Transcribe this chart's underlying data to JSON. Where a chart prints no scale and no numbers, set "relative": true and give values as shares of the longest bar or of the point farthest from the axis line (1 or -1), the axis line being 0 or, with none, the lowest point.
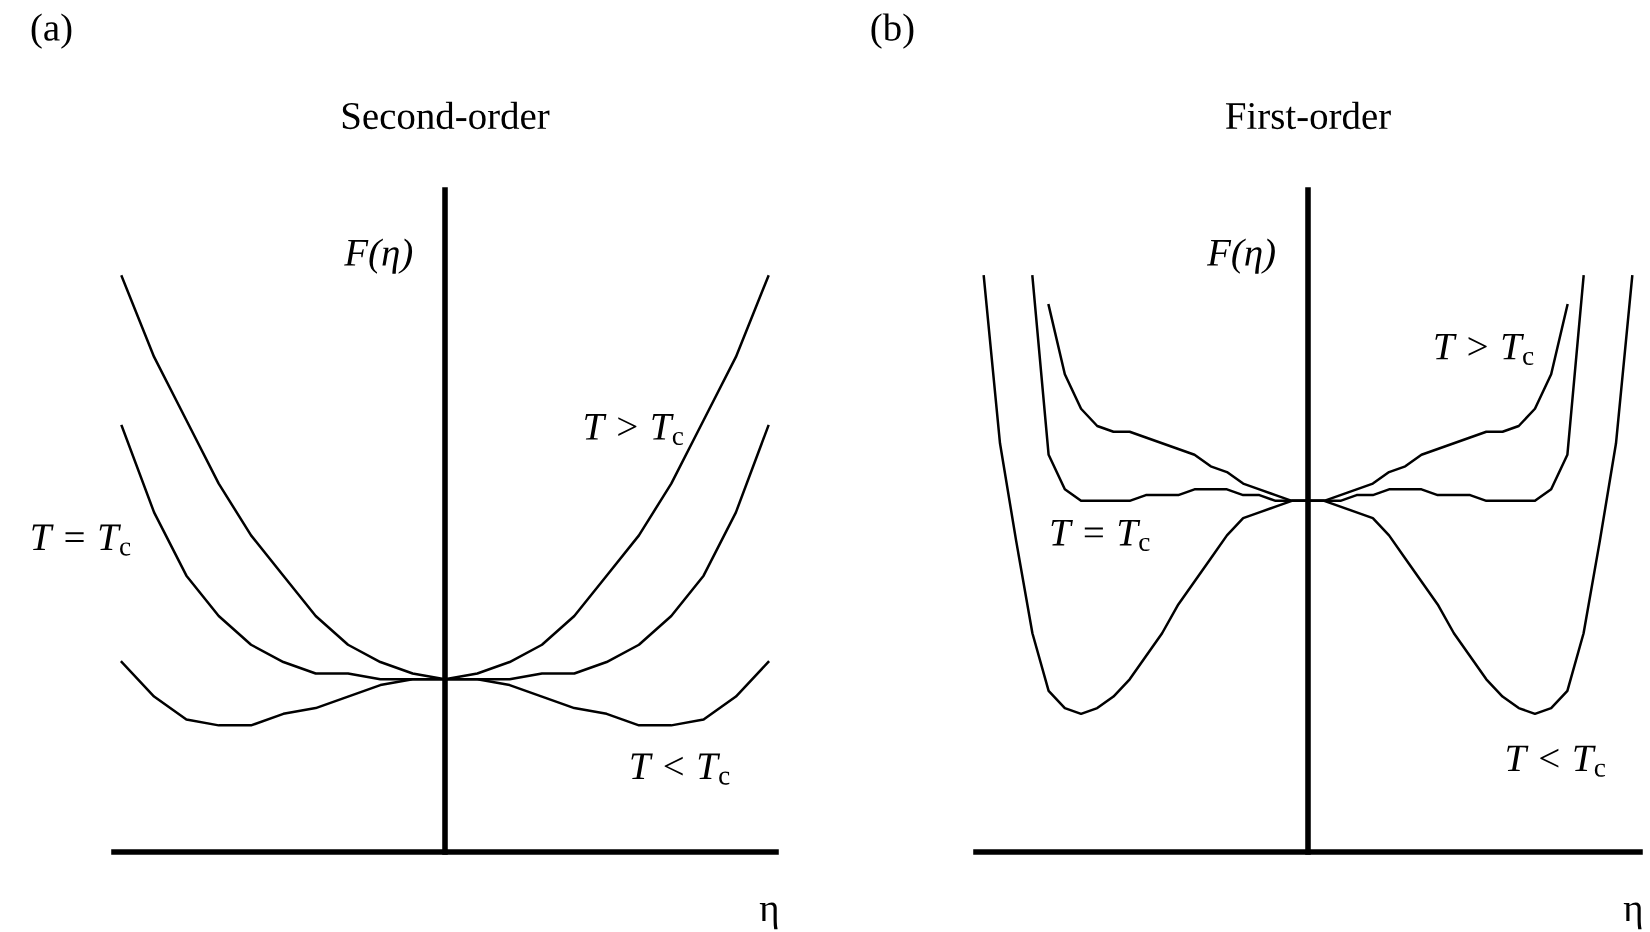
{
  "chart_data": [
    {
      "type": "line",
      "title": "Second-order",
      "xlabel": "η",
      "ylabel": "F(η)",
      "annotations": [
        "(a)"
      ],
      "relative": true,
      "categories": [
        null,
        null,
        null,
        null,
        null,
        null,
        null,
        null,
        null,
        null,
        null,
        null,
        null,
        null,
        null,
        null,
        null,
        null,
        null,
        null,
        null
      ],
      "series": [
        {
          "name": "T > T$_{c}$",
          "color": "#000000",
          "values": [
            1.0,
            0.86,
            0.75,
            0.64,
            0.55,
            0.48,
            0.41,
            0.36,
            0.33,
            0.31,
            0.3,
            0.31,
            0.33,
            0.36,
            0.41,
            0.48,
            0.55,
            0.64,
            0.75,
            0.86,
            1.0
          ]
        },
        {
          "name": "T = T$_{c}$",
          "color": "#000000",
          "values": [
            0.74,
            0.59,
            0.48,
            0.41,
            0.36,
            0.33,
            0.31,
            0.31,
            0.3,
            0.3,
            0.3,
            0.3,
            0.3,
            0.31,
            0.31,
            0.33,
            0.36,
            0.41,
            0.48,
            0.59,
            0.74
          ]
        },
        {
          "name": "T < T$_{c}$",
          "color": "#000000",
          "values": [
            0.33,
            0.27,
            0.23,
            0.22,
            0.22,
            0.24,
            0.25,
            0.27,
            0.29,
            0.3,
            0.3,
            0.3,
            0.29,
            0.27,
            0.25,
            0.24,
            0.22,
            0.22,
            0.23,
            0.27,
            0.33
          ]
        }
      ]
    },
    {
      "type": "line",
      "title": "First-order",
      "xlabel": "η",
      "ylabel": "F(η)",
      "annotations": [
        "(b)"
      ],
      "relative": true,
      "categories": [
        null,
        null,
        null,
        null,
        null,
        null,
        null,
        null,
        null,
        null,
        null,
        null,
        null,
        null,
        null,
        null,
        null,
        null,
        null,
        null,
        null,
        null,
        null,
        null,
        null,
        null,
        null,
        null,
        null,
        null,
        null,
        null,
        null,
        null,
        null,
        null,
        null,
        null,
        null,
        null,
        null
      ],
      "series": [
        {
          "name": "T > T$_{c}$",
          "color": "#000000",
          "values": [
            null,
            null,
            null,
            null,
            0.95,
            0.83,
            0.77,
            0.74,
            0.73,
            0.73,
            0.72,
            0.71,
            0.7,
            0.69,
            0.67,
            0.66,
            0.64,
            0.63,
            0.62,
            0.61,
            0.61,
            0.61,
            0.62,
            0.63,
            0.64,
            0.66,
            0.67,
            0.69,
            0.7,
            0.71,
            0.72,
            0.73,
            0.73,
            0.74,
            0.77,
            0.83,
            0.95,
            null,
            null,
            null,
            null
          ]
        },
        {
          "name": "T = T$_{c}$",
          "color": "#000000",
          "values": [
            null,
            null,
            null,
            1.0,
            0.69,
            0.63,
            0.61,
            0.61,
            0.61,
            0.61,
            0.62,
            0.62,
            0.62,
            0.63,
            0.63,
            0.63,
            0.62,
            0.62,
            0.61,
            0.61,
            0.61,
            0.61,
            0.61,
            0.62,
            0.62,
            0.63,
            0.63,
            0.63,
            0.62,
            0.62,
            0.62,
            0.61,
            0.61,
            0.61,
            0.61,
            0.63,
            0.69,
            1.0,
            null,
            null,
            null
          ]
        },
        {
          "name": "T < T$_{c}$",
          "color": "#000000",
          "values": [
            1.0,
            0.71,
            0.54,
            0.38,
            0.28,
            0.25,
            0.24,
            0.25,
            0.27,
            0.3,
            0.34,
            0.38,
            0.43,
            0.47,
            0.51,
            0.55,
            0.58,
            0.59,
            0.6,
            0.61,
            0.61,
            0.61,
            0.6,
            0.59,
            0.58,
            0.55,
            0.51,
            0.47,
            0.43,
            0.38,
            0.34,
            0.3,
            0.27,
            0.25,
            0.24,
            0.25,
            0.28,
            0.38,
            0.54,
            0.71,
            1.0
          ]
        }
      ]
    }
  ]
}
